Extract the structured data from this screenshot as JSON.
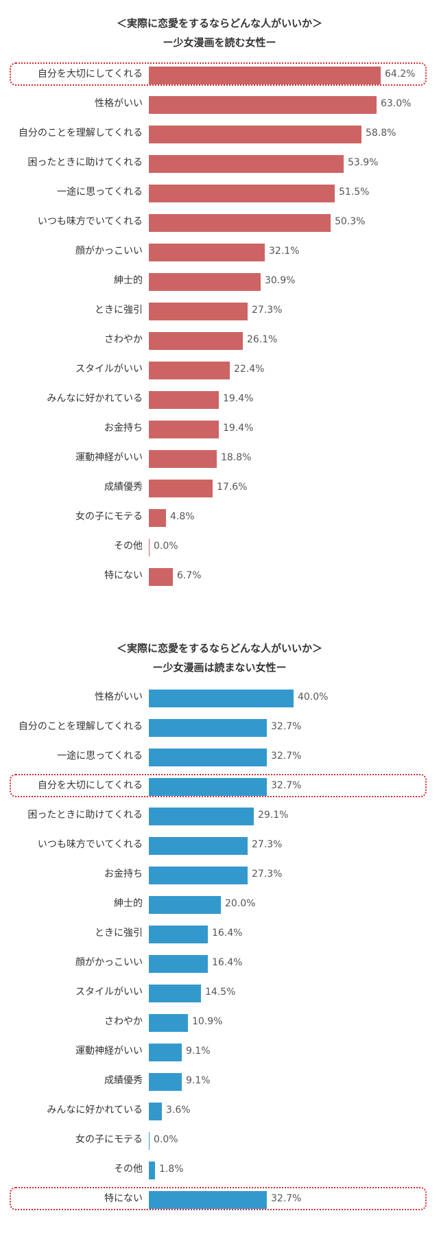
{
  "chart_data": [
    {
      "type": "bar",
      "orientation": "horizontal",
      "title": "＜実際に恋愛をするならどんな人がいいか＞",
      "subtitle": "ー少女漫画を読む女性ー",
      "color": "#cd6464",
      "value_suffix": "%",
      "xlim": [
        0,
        64.2
      ],
      "highlight": [
        "自分を大切にしてくれる"
      ],
      "categories": [
        "自分を大切にしてくれる",
        "性格がいい",
        "自分のことを理解してくれる",
        "困ったときに助けてくれる",
        "一途に思ってくれる",
        "いつも味方でいてくれる",
        "顔がかっこいい",
        "紳士的",
        "ときに強引",
        "さわやか",
        "スタイルがいい",
        "みんなに好かれている",
        "お金持ち",
        "運動神経がいい",
        "成績優秀",
        "女の子にモテる",
        "その他",
        "特にない"
      ],
      "values": [
        64.2,
        63.0,
        58.8,
        53.9,
        51.5,
        50.3,
        32.1,
        30.9,
        27.3,
        26.1,
        22.4,
        19.4,
        19.4,
        18.8,
        17.6,
        4.8,
        0.0,
        6.7
      ],
      "value_labels": [
        "64.2%",
        "63.0%",
        "58.8%",
        "53.9%",
        "51.5%",
        "50.3%",
        "32.1%",
        "30.9%",
        "27.3%",
        "26.1%",
        "22.4%",
        "19.4%",
        "19.4%",
        "18.8%",
        "17.6%",
        "4.8%",
        "0.0%",
        "6.7%"
      ]
    },
    {
      "type": "bar",
      "orientation": "horizontal",
      "title": "＜実際に恋愛をするならどんな人がいいか＞",
      "subtitle": "ー少女漫画は読まない女性ー",
      "color": "#3399cc",
      "value_suffix": "%",
      "xlim": [
        0,
        64.2
      ],
      "highlight": [
        "自分を大切にしてくれる",
        "特にない"
      ],
      "categories": [
        "性格がいい",
        "自分のことを理解してくれる",
        "一途に思ってくれる",
        "自分を大切にしてくれる",
        "困ったときに助けてくれる",
        "いつも味方でいてくれる",
        "お金持ち",
        "紳士的",
        "ときに強引",
        "顔がかっこいい",
        "スタイルがいい",
        "さわやか",
        "運動神経がいい",
        "成績優秀",
        "みんなに好かれている",
        "女の子にモテる",
        "その他",
        "特にない"
      ],
      "values": [
        40.0,
        32.7,
        32.7,
        32.7,
        29.1,
        27.3,
        27.3,
        20.0,
        16.4,
        16.4,
        14.5,
        10.9,
        9.1,
        9.1,
        3.6,
        0.0,
        1.8,
        32.7
      ],
      "value_labels": [
        "40.0%",
        "32.7%",
        "32.7%",
        "32.7%",
        "29.1%",
        "27.3%",
        "27.3%",
        "20.0%",
        "16.4%",
        "16.4%",
        "14.5%",
        "10.9%",
        "9.1%",
        "9.1%",
        "3.6%",
        "0.0%",
        "1.8%",
        "32.7%"
      ]
    }
  ]
}
